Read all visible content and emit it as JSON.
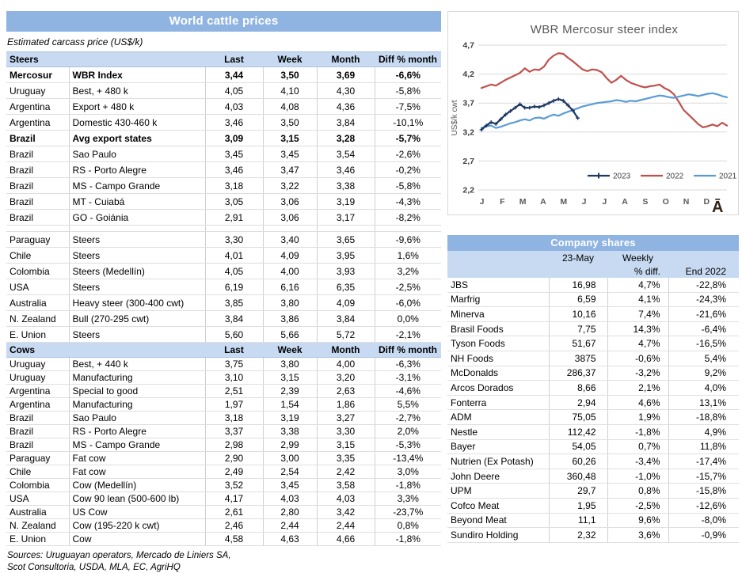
{
  "left_table": {
    "title": "World cattle prices",
    "subtitle": "Estimated carcass price (US$/k)",
    "accent_color": "#8FB4E2",
    "section_header_color": "#C7DAF2",
    "sections": [
      {
        "label": "Steers",
        "columns": [
          "Last",
          "Week",
          "Month",
          "Diff % month"
        ],
        "row_class": "steers",
        "rows": [
          {
            "country": "Mercosur",
            "item": "WBR Index",
            "last": "3,44",
            "week": "3,50",
            "month": "3,69",
            "diff": "-6,6%",
            "bold": true
          },
          {
            "country": "Uruguay",
            "item": "Best, + 480 k",
            "last": "4,05",
            "week": "4,10",
            "month": "4,30",
            "diff": "-5,8%"
          },
          {
            "country": "Argentina",
            "item": "Export + 480 k",
            "last": "4,03",
            "week": "4,08",
            "month": "4,36",
            "diff": "-7,5%"
          },
          {
            "country": "Argentina",
            "item": "Domestic 430-460 k",
            "last": "3,46",
            "week": "3,50",
            "month": "3,84",
            "diff": "-10,1%"
          },
          {
            "country": "Brazil",
            "item": "Avg export states",
            "last": "3,09",
            "week": "3,15",
            "month": "3,28",
            "diff": "-5,7%",
            "bold": true
          },
          {
            "country": "Brazil",
            "item": "Sao Paulo",
            "last": "3,45",
            "week": "3,45",
            "month": "3,54",
            "diff": "-2,6%"
          },
          {
            "country": "Brazil",
            "item": "RS - Porto Alegre",
            "last": "3,46",
            "week": "3,47",
            "month": "3,46",
            "diff": "-0,2%"
          },
          {
            "country": "Brazil",
            "item": "MS - Campo Grande",
            "last": "3,18",
            "week": "3,22",
            "month": "3,38",
            "diff": "-5,8%"
          },
          {
            "country": "Brazil",
            "item": "MT - Cuiabá",
            "last": "3,05",
            "week": "3,06",
            "month": "3,19",
            "diff": "-4,3%"
          },
          {
            "country": "Brazil",
            "item": "GO - Goiánia",
            "last": "2,91",
            "week": "3,06",
            "month": "3,17",
            "diff": "-8,2%",
            "gap_after": true
          },
          {
            "country": "Paraguay",
            "item": "Steers",
            "last": "3,30",
            "week": "3,40",
            "month": "3,65",
            "diff": "-9,6%"
          },
          {
            "country": "Chile",
            "item": "Steers",
            "last": "4,01",
            "week": "4,09",
            "month": "3,95",
            "diff": "1,6%"
          },
          {
            "country": "Colombia",
            "item": "Steers (Medellín)",
            "last": "4,05",
            "week": "4,00",
            "month": "3,93",
            "diff": "3,2%"
          },
          {
            "country": "USA",
            "item": "Steers",
            "last": "6,19",
            "week": "6,16",
            "month": "6,35",
            "diff": "-2,5%"
          },
          {
            "country": "Australia",
            "item": "Heavy steer (300-400 cwt)",
            "last": "3,85",
            "week": "3,80",
            "month": "4,09",
            "diff": "-6,0%"
          },
          {
            "country": "N. Zealand",
            "item": "Bull (270-295 cwt)",
            "last": "3,84",
            "week": "3,86",
            "month": "3,84",
            "diff": "0,0%"
          },
          {
            "country": "E. Union",
            "item": "Steers",
            "last": "5,60",
            "week": "5,66",
            "month": "5,72",
            "diff": "-2,1%"
          }
        ]
      },
      {
        "label": "Cows",
        "columns": [
          "Last",
          "Week",
          "Month",
          "Diff % month"
        ],
        "row_class": "cows",
        "rows": [
          {
            "country": "Uruguay",
            "item": "Best, + 440 k",
            "last": "3,75",
            "week": "3,80",
            "month": "4,00",
            "diff": "-6,3%"
          },
          {
            "country": "Uruguay",
            "item": "Manufacturing",
            "last": "3,10",
            "week": "3,15",
            "month": "3,20",
            "diff": "-3,1%"
          },
          {
            "country": "Argentina",
            "item": "Special to good",
            "last": "2,51",
            "week": "2,39",
            "month": "2,63",
            "diff": "-4,6%"
          },
          {
            "country": "Argentina",
            "item": "Manufacturing",
            "last": "1,97",
            "week": "1,54",
            "month": "1,86",
            "diff": "5,5%"
          },
          {
            "country": "Brazil",
            "item": "Sao Paulo",
            "last": "3,18",
            "week": "3,19",
            "month": "3,27",
            "diff": "-2,7%"
          },
          {
            "country": "Brazil",
            "item": "RS - Porto Alegre",
            "last": "3,37",
            "week": "3,38",
            "month": "3,30",
            "diff": "2,0%"
          },
          {
            "country": "Brazil",
            "item": "MS - Campo Grande",
            "last": "2,98",
            "week": "2,99",
            "month": "3,15",
            "diff": "-5,3%"
          },
          {
            "country": "Paraguay",
            "item": "Fat cow",
            "last": "2,90",
            "week": "3,00",
            "month": "3,35",
            "diff": "-13,4%"
          },
          {
            "country": "Chile",
            "item": "Fat cow",
            "last": "2,49",
            "week": "2,54",
            "month": "2,42",
            "diff": "3,0%"
          },
          {
            "country": "Colombia",
            "item": "Cow (Medellín)",
            "last": "3,52",
            "week": "3,45",
            "month": "3,58",
            "diff": "-1,8%"
          },
          {
            "country": "USA",
            "item": "Cow 90 lean (500-600 lb)",
            "last": "4,17",
            "week": "4,03",
            "month": "4,03",
            "diff": "3,3%"
          },
          {
            "country": "Australia",
            "item": "US Cow",
            "last": "2,61",
            "week": "2,80",
            "month": "3,42",
            "diff": "-23,7%"
          },
          {
            "country": "N. Zealand",
            "item": "Cow (195-220 k cwt)",
            "last": "2,46",
            "week": "2,44",
            "month": "2,44",
            "diff": "0,8%"
          },
          {
            "country": "E. Union",
            "item": "Cow",
            "last": "4,58",
            "week": "4,63",
            "month": "4,66",
            "diff": "-1,8%"
          }
        ]
      }
    ],
    "sources": [
      "Sources: Uruguayan operators, Mercado de Liniers SA,",
      "Scot Consultoria, USDA, MLA, EC, AgriHQ"
    ]
  },
  "chart_data": {
    "type": "line",
    "title": "WBR Mercosur steer index",
    "ylabel": "US$/k cwt",
    "ylim": [
      2.2,
      4.7
    ],
    "grid": true,
    "legend_position": "inside-bottom-right",
    "yticks": [
      {
        "label": "4,7",
        "value": 4.7
      },
      {
        "label": "4,2",
        "value": 4.2
      },
      {
        "label": "3,7",
        "value": 3.7
      },
      {
        "label": "3,2",
        "value": 3.2
      },
      {
        "label": "2,7",
        "value": 2.7
      },
      {
        "label": "2,2",
        "value": 2.2
      }
    ],
    "x_months": [
      "J",
      "F",
      "M",
      "A",
      "M",
      "J",
      "J",
      "A",
      "S",
      "O",
      "N",
      "D"
    ],
    "weeks_per_year": 52,
    "series": [
      {
        "name": "2023",
        "color": "#1F3864",
        "marker": "plus",
        "values": [
          3.24,
          3.31,
          3.37,
          3.34,
          3.42,
          3.5,
          3.56,
          3.62,
          3.68,
          3.62,
          3.62,
          3.64,
          3.63,
          3.66,
          3.7,
          3.74,
          3.77,
          3.74,
          3.66,
          3.57,
          3.44
        ]
      },
      {
        "name": "2022",
        "color": "#C0504D",
        "marker": "none",
        "values": [
          3.96,
          3.99,
          4.02,
          4.0,
          4.05,
          4.1,
          4.14,
          4.18,
          4.22,
          4.3,
          4.24,
          4.28,
          4.27,
          4.33,
          4.45,
          4.52,
          4.56,
          4.55,
          4.48,
          4.42,
          4.35,
          4.28,
          4.25,
          4.28,
          4.27,
          4.23,
          4.13,
          4.05,
          4.1,
          4.17,
          4.1,
          4.05,
          4.02,
          3.99,
          3.97,
          3.99,
          4.0,
          4.02,
          3.96,
          3.92,
          3.85,
          3.72,
          3.58,
          3.5,
          3.42,
          3.34,
          3.28,
          3.3,
          3.33,
          3.3,
          3.36,
          3.31
        ]
      },
      {
        "name": "2021",
        "color": "#5B9BD5",
        "marker": "none",
        "values": [
          3.27,
          3.3,
          3.31,
          3.27,
          3.29,
          3.32,
          3.35,
          3.37,
          3.4,
          3.42,
          3.4,
          3.44,
          3.45,
          3.43,
          3.47,
          3.5,
          3.48,
          3.52,
          3.55,
          3.58,
          3.61,
          3.64,
          3.66,
          3.68,
          3.7,
          3.71,
          3.72,
          3.73,
          3.75,
          3.74,
          3.72,
          3.74,
          3.73,
          3.75,
          3.77,
          3.79,
          3.81,
          3.83,
          3.82,
          3.8,
          3.79,
          3.81,
          3.83,
          3.85,
          3.84,
          3.82,
          3.84,
          3.86,
          3.87,
          3.85,
          3.82,
          3.8
        ]
      }
    ],
    "logo_glyph": "Ā",
    "logo_color": "#33241A"
  },
  "company_shares": {
    "title": "Company shares",
    "columns": {
      "date": "23-May",
      "weekly_line1": "Weekly",
      "weekly_line2": "% diff.",
      "end": "End 2022"
    },
    "rows": [
      {
        "name": "JBS",
        "price": "16,98",
        "weekly": "4,7%",
        "end": "-22,8%"
      },
      {
        "name": "Marfrig",
        "price": "6,59",
        "weekly": "4,1%",
        "end": "-24,3%"
      },
      {
        "name": "Minerva",
        "price": "10,16",
        "weekly": "7,4%",
        "end": "-21,6%"
      },
      {
        "name": "Brasil Foods",
        "price": "7,75",
        "weekly": "14,3%",
        "end": "-6,4%"
      },
      {
        "name": "Tyson Foods",
        "price": "51,67",
        "weekly": "4,7%",
        "end": "-16,5%"
      },
      {
        "name": "NH Foods",
        "price": "3875",
        "weekly": "-0,6%",
        "end": "5,4%"
      },
      {
        "name": "McDonalds",
        "price": "286,37",
        "weekly": "-3,2%",
        "end": "9,2%"
      },
      {
        "name": "Arcos Dorados",
        "price": "8,66",
        "weekly": "2,1%",
        "end": "4,0%"
      },
      {
        "name": "Fonterra",
        "price": "2,94",
        "weekly": "4,6%",
        "end": "13,1%"
      },
      {
        "name": "ADM",
        "price": "75,05",
        "weekly": "1,9%",
        "end": "-18,8%"
      },
      {
        "name": "Nestle",
        "price": "112,42",
        "weekly": "-1,8%",
        "end": "4,9%"
      },
      {
        "name": "Bayer",
        "price": "54,05",
        "weekly": "0,7%",
        "end": "11,8%"
      },
      {
        "name": "Nutrien (Ex Potash)",
        "price": "60,26",
        "weekly": "-3,4%",
        "end": "-17,4%"
      },
      {
        "name": "John Deere",
        "price": "360,48",
        "weekly": "-1,0%",
        "end": "-15,7%"
      },
      {
        "name": "UPM",
        "price": "29,7",
        "weekly": "0,8%",
        "end": "-15,8%"
      },
      {
        "name": "Cofco Meat",
        "price": "1,95",
        "weekly": "-2,5%",
        "end": "-12,6%"
      },
      {
        "name": "Beyond Meat",
        "price": "11,1",
        "weekly": "9,6%",
        "end": "-8,0%"
      },
      {
        "name": "Sundiro Holding",
        "price": "2,32",
        "weekly": "3,6%",
        "end": "-0,9%"
      }
    ]
  }
}
